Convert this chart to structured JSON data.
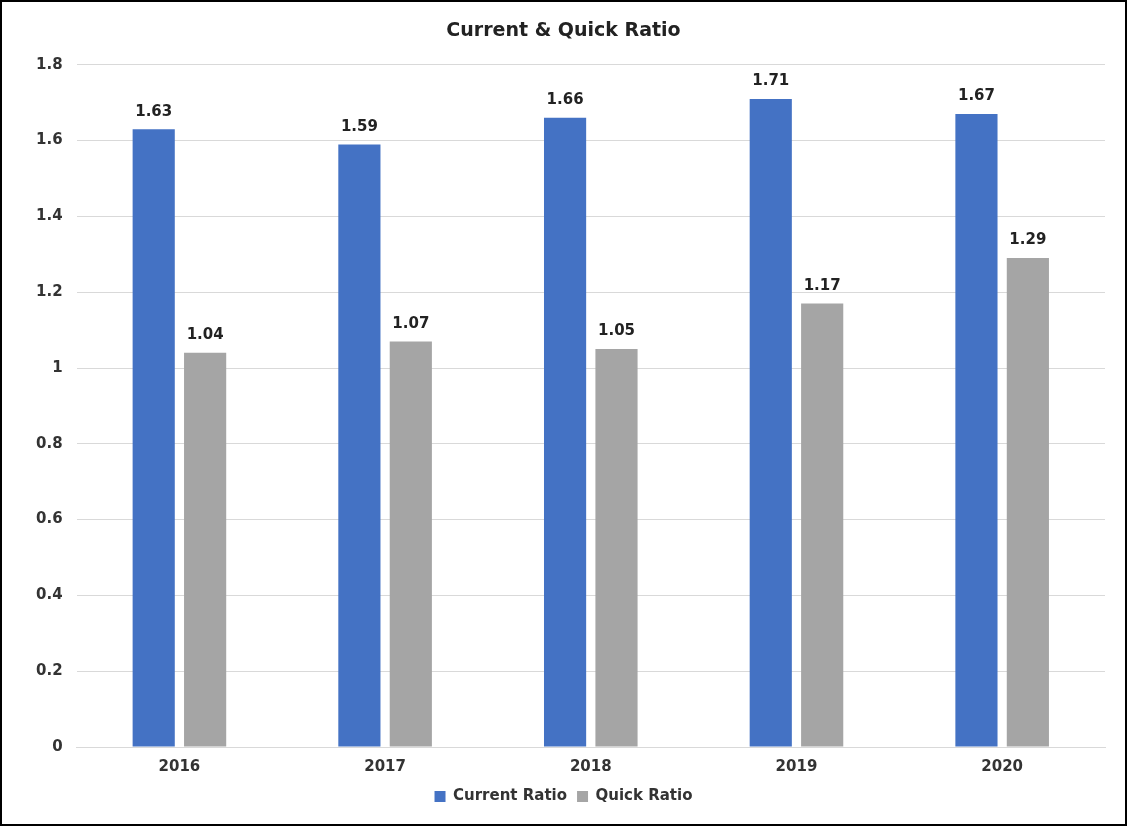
{
  "chart_data": {
    "type": "bar",
    "title": "Current & Quick Ratio",
    "categories": [
      "2016",
      "2017",
      "2018",
      "2019",
      "2020"
    ],
    "series": [
      {
        "name": "Current Ratio",
        "color": "#4472c4",
        "values": [
          1.63,
          1.59,
          1.66,
          1.71,
          1.67
        ]
      },
      {
        "name": "Quick Ratio",
        "color": "#a5a5a5",
        "values": [
          1.04,
          1.07,
          1.05,
          1.17,
          1.29
        ]
      }
    ],
    "ylim": [
      0,
      1.8
    ],
    "yticks": [
      0,
      0.2,
      0.4,
      0.6,
      0.8,
      1,
      1.2,
      1.4,
      1.6,
      1.8
    ],
    "grid": "y",
    "legend": "bottom",
    "data_labels": true
  }
}
